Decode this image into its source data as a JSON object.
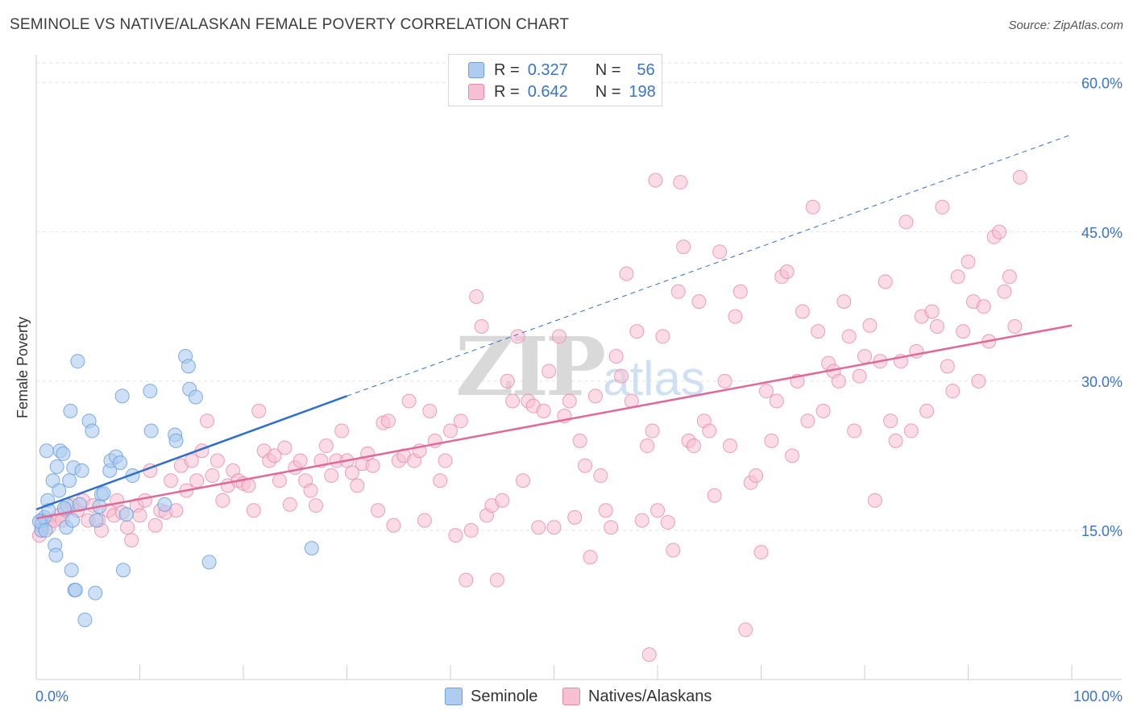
{
  "title": "SEMINOLE VS NATIVE/ALASKAN FEMALE POVERTY CORRELATION CHART",
  "source": "Source: ZipAtlas.com",
  "watermark": "ZIPatlas",
  "colors": {
    "seminole_fill": "#aecbf0",
    "seminole_stroke": "#6c9fdc",
    "seminole_line": "#2f6fcb",
    "natives_fill": "#f7bfd2",
    "natives_stroke": "#e58aaa",
    "natives_line": "#e0699a",
    "tick_label": "#3a74c4"
  },
  "legend": {
    "rows": [
      {
        "r_label": "R =",
        "r_value": "0.327",
        "n_label": "N =",
        "n_value": "56"
      },
      {
        "r_label": "R =",
        "r_value": "0.642",
        "n_label": "N =",
        "n_value": "198"
      }
    ]
  },
  "bottom_legend": [
    "Seminole",
    "Natives/Alaskans"
  ],
  "chart_data": {
    "type": "scatter",
    "title": "SEMINOLE VS NATIVE/ALASKAN FEMALE POVERTY CORRELATION CHART",
    "xlabel": "",
    "ylabel": "Female Poverty",
    "xlim": [
      0,
      100
    ],
    "ylim": [
      0,
      62
    ],
    "x_tick_labels": [
      "0.0%",
      "100.0%"
    ],
    "y_ticks": [
      15,
      30,
      45,
      60
    ],
    "y_tick_labels": [
      "15.0%",
      "30.0%",
      "45.0%",
      "60.0%"
    ],
    "grid": "horizontal dashed",
    "legend_position": "top-center",
    "series": [
      {
        "name": "Seminole",
        "r": 0.327,
        "n": 56,
        "trend": {
          "x": [
            0,
            30
          ],
          "y": [
            17.1,
            28.5
          ],
          "dashed_extension_to": [
            100,
            54.8
          ]
        },
        "points": [
          [
            0.5,
            16
          ],
          [
            0.5,
            15.5
          ],
          [
            0.5,
            15
          ],
          [
            0.8,
            16.3
          ],
          [
            1,
            23
          ],
          [
            1.1,
            18
          ],
          [
            1.2,
            17
          ],
          [
            1.6,
            20
          ],
          [
            1.8,
            13.5
          ],
          [
            1.9,
            12.5
          ],
          [
            2,
            21.4
          ],
          [
            2.2,
            19
          ],
          [
            2.3,
            23
          ],
          [
            2.6,
            22.7
          ],
          [
            2.9,
            15.3
          ],
          [
            3,
            17.5
          ],
          [
            3.2,
            20
          ],
          [
            3.3,
            27
          ],
          [
            3.4,
            11
          ],
          [
            3.5,
            16
          ],
          [
            3.6,
            21.3
          ],
          [
            3.7,
            9
          ],
          [
            3.8,
            9
          ],
          [
            4,
            32
          ],
          [
            4.2,
            17.6
          ],
          [
            4.4,
            21
          ],
          [
            4.7,
            6
          ],
          [
            5.1,
            26
          ],
          [
            5.4,
            25
          ],
          [
            5.7,
            8.7
          ],
          [
            5.8,
            16
          ],
          [
            6.3,
            18.6
          ],
          [
            6.5,
            18.7
          ],
          [
            7.1,
            21
          ],
          [
            7.2,
            22
          ],
          [
            7.7,
            22.4
          ],
          [
            8.1,
            21.8
          ],
          [
            8.3,
            28.5
          ],
          [
            8.4,
            11
          ],
          [
            8.7,
            16.6
          ],
          [
            9.3,
            20.5
          ],
          [
            11,
            29
          ],
          [
            11.1,
            25
          ],
          [
            12.4,
            17.6
          ],
          [
            13.4,
            24.6
          ],
          [
            13.5,
            24
          ],
          [
            14.4,
            32.5
          ],
          [
            14.7,
            31.5
          ],
          [
            14.8,
            29.2
          ],
          [
            15.4,
            28.4
          ],
          [
            16.7,
            11.8
          ],
          [
            26.6,
            13.2
          ],
          [
            0.3,
            15.9
          ],
          [
            0.9,
            15
          ],
          [
            2.7,
            17.2
          ],
          [
            6.1,
            17.4
          ]
        ]
      },
      {
        "name": "Natives/Alaskans",
        "r": 0.642,
        "n": 198,
        "trend": {
          "x": [
            0,
            100
          ],
          "y": [
            16.2,
            35.6
          ]
        },
        "points": [
          [
            0.3,
            14.5
          ],
          [
            0.5,
            15
          ],
          [
            1,
            16
          ],
          [
            1.2,
            15.3
          ],
          [
            1.7,
            16
          ],
          [
            2.2,
            16.5
          ],
          [
            2.5,
            16
          ],
          [
            2.8,
            17
          ],
          [
            3.5,
            17.5
          ],
          [
            4,
            17
          ],
          [
            4.5,
            18
          ],
          [
            5,
            16
          ],
          [
            5.5,
            17.5
          ],
          [
            6,
            16
          ],
          [
            6.3,
            15
          ],
          [
            7,
            17
          ],
          [
            7.5,
            16.5
          ],
          [
            7.8,
            18
          ],
          [
            8.3,
            16.8
          ],
          [
            8.8,
            15.3
          ],
          [
            9.2,
            14
          ],
          [
            9.7,
            17.5
          ],
          [
            10,
            16.5
          ],
          [
            10.5,
            18
          ],
          [
            11,
            21
          ],
          [
            11.5,
            15.5
          ],
          [
            12,
            17
          ],
          [
            12.5,
            16.8
          ],
          [
            13,
            20
          ],
          [
            13.5,
            17
          ],
          [
            14,
            21.5
          ],
          [
            14.5,
            19
          ],
          [
            15,
            22
          ],
          [
            15.5,
            20
          ],
          [
            16,
            23
          ],
          [
            16.5,
            26
          ],
          [
            17,
            20.5
          ],
          [
            17.5,
            22
          ],
          [
            18,
            18
          ],
          [
            18.5,
            19.5
          ],
          [
            19,
            21
          ],
          [
            19.5,
            20
          ],
          [
            20,
            19.7
          ],
          [
            20.5,
            19.5
          ],
          [
            21,
            17
          ],
          [
            21.5,
            27
          ],
          [
            22,
            23
          ],
          [
            22.5,
            22
          ],
          [
            23,
            22.5
          ],
          [
            23.5,
            20
          ],
          [
            24,
            23.3
          ],
          [
            24.5,
            17.6
          ],
          [
            25,
            21.3
          ],
          [
            25.5,
            22
          ],
          [
            26,
            20
          ],
          [
            26.5,
            19
          ],
          [
            27,
            17.5
          ],
          [
            27.5,
            22
          ],
          [
            28,
            23.5
          ],
          [
            28.5,
            20.5
          ],
          [
            29,
            22
          ],
          [
            29.5,
            25
          ],
          [
            30,
            22
          ],
          [
            30.5,
            20.8
          ],
          [
            31,
            19.5
          ],
          [
            31.5,
            21.7
          ],
          [
            32,
            22.7
          ],
          [
            32.5,
            21.5
          ],
          [
            33,
            17
          ],
          [
            33.5,
            25.8
          ],
          [
            34,
            26
          ],
          [
            34.5,
            15.5
          ],
          [
            35,
            22
          ],
          [
            35.5,
            22.5
          ],
          [
            36,
            28
          ],
          [
            36.5,
            22
          ],
          [
            37,
            23
          ],
          [
            37.5,
            16
          ],
          [
            38,
            27
          ],
          [
            38.5,
            24
          ],
          [
            39,
            20
          ],
          [
            39.5,
            22
          ],
          [
            40,
            25
          ],
          [
            40.5,
            14.5
          ],
          [
            41,
            26
          ],
          [
            41.5,
            10
          ],
          [
            42,
            15
          ],
          [
            42.5,
            38.5
          ],
          [
            43,
            35.5
          ],
          [
            43.5,
            16.5
          ],
          [
            44,
            17.5
          ],
          [
            44.5,
            10
          ],
          [
            45,
            18
          ],
          [
            45.5,
            30
          ],
          [
            46,
            28
          ],
          [
            46.5,
            34.5
          ],
          [
            47,
            20
          ],
          [
            47.5,
            28
          ],
          [
            48,
            27.5
          ],
          [
            48.5,
            15.3
          ],
          [
            49,
            27
          ],
          [
            49.5,
            31
          ],
          [
            50,
            15.3
          ],
          [
            50.5,
            34.5
          ],
          [
            51,
            26.5
          ],
          [
            51.5,
            28
          ],
          [
            52,
            16.3
          ],
          [
            52.5,
            24
          ],
          [
            53,
            21.5
          ],
          [
            53.5,
            12.3
          ],
          [
            54,
            28.5
          ],
          [
            54.5,
            20.5
          ],
          [
            55,
            17
          ],
          [
            55.5,
            15.3
          ],
          [
            56,
            32.5
          ],
          [
            56.5,
            30.5
          ],
          [
            57,
            40.8
          ],
          [
            57.5,
            28
          ],
          [
            58,
            35
          ],
          [
            58.5,
            16
          ],
          [
            59,
            23.5
          ],
          [
            59.5,
            25
          ],
          [
            60,
            17
          ],
          [
            60.5,
            34.5
          ],
          [
            61,
            15.8
          ],
          [
            61.5,
            13
          ],
          [
            62,
            39
          ],
          [
            62.5,
            43.5
          ],
          [
            63,
            24
          ],
          [
            63.5,
            23.5
          ],
          [
            64,
            38
          ],
          [
            64.5,
            26
          ],
          [
            65,
            25
          ],
          [
            65.5,
            18.5
          ],
          [
            66,
            43
          ],
          [
            66.5,
            30
          ],
          [
            67,
            23.5
          ],
          [
            67.5,
            36.5
          ],
          [
            68,
            39
          ],
          [
            68.5,
            5
          ],
          [
            69,
            19.8
          ],
          [
            69.5,
            20.5
          ],
          [
            70,
            12.8
          ],
          [
            70.5,
            29
          ],
          [
            71,
            24
          ],
          [
            71.5,
            28
          ],
          [
            72,
            40.5
          ],
          [
            72.5,
            41
          ],
          [
            73,
            22.5
          ],
          [
            73.5,
            30
          ],
          [
            74,
            37
          ],
          [
            74.5,
            26
          ],
          [
            75,
            47.5
          ],
          [
            75.5,
            35
          ],
          [
            76,
            27
          ],
          [
            76.5,
            31.8
          ],
          [
            77,
            31
          ],
          [
            77.5,
            30
          ],
          [
            78,
            38
          ],
          [
            78.5,
            34.5
          ],
          [
            79,
            25
          ],
          [
            79.5,
            30.5
          ],
          [
            80,
            32.5
          ],
          [
            80.5,
            35.6
          ],
          [
            81,
            18
          ],
          [
            81.5,
            32
          ],
          [
            82,
            40
          ],
          [
            82.5,
            26
          ],
          [
            83,
            24
          ],
          [
            83.5,
            32
          ],
          [
            84,
            46
          ],
          [
            84.5,
            25
          ],
          [
            85,
            33
          ],
          [
            85.5,
            36.5
          ],
          [
            86,
            27
          ],
          [
            86.5,
            37
          ],
          [
            87,
            35.5
          ],
          [
            87.5,
            47.5
          ],
          [
            88,
            31.5
          ],
          [
            88.5,
            29
          ],
          [
            89,
            40.5
          ],
          [
            89.5,
            35
          ],
          [
            90,
            42
          ],
          [
            90.5,
            38
          ],
          [
            91,
            30
          ],
          [
            91.5,
            37.5
          ],
          [
            92,
            34
          ],
          [
            92.5,
            44.5
          ],
          [
            93,
            45
          ],
          [
            93.5,
            39
          ],
          [
            94,
            40.5
          ],
          [
            94.5,
            35.5
          ],
          [
            95,
            50.5
          ],
          [
            62.2,
            50
          ],
          [
            59.8,
            50.2
          ],
          [
            59.2,
            2.5
          ]
        ]
      }
    ]
  }
}
